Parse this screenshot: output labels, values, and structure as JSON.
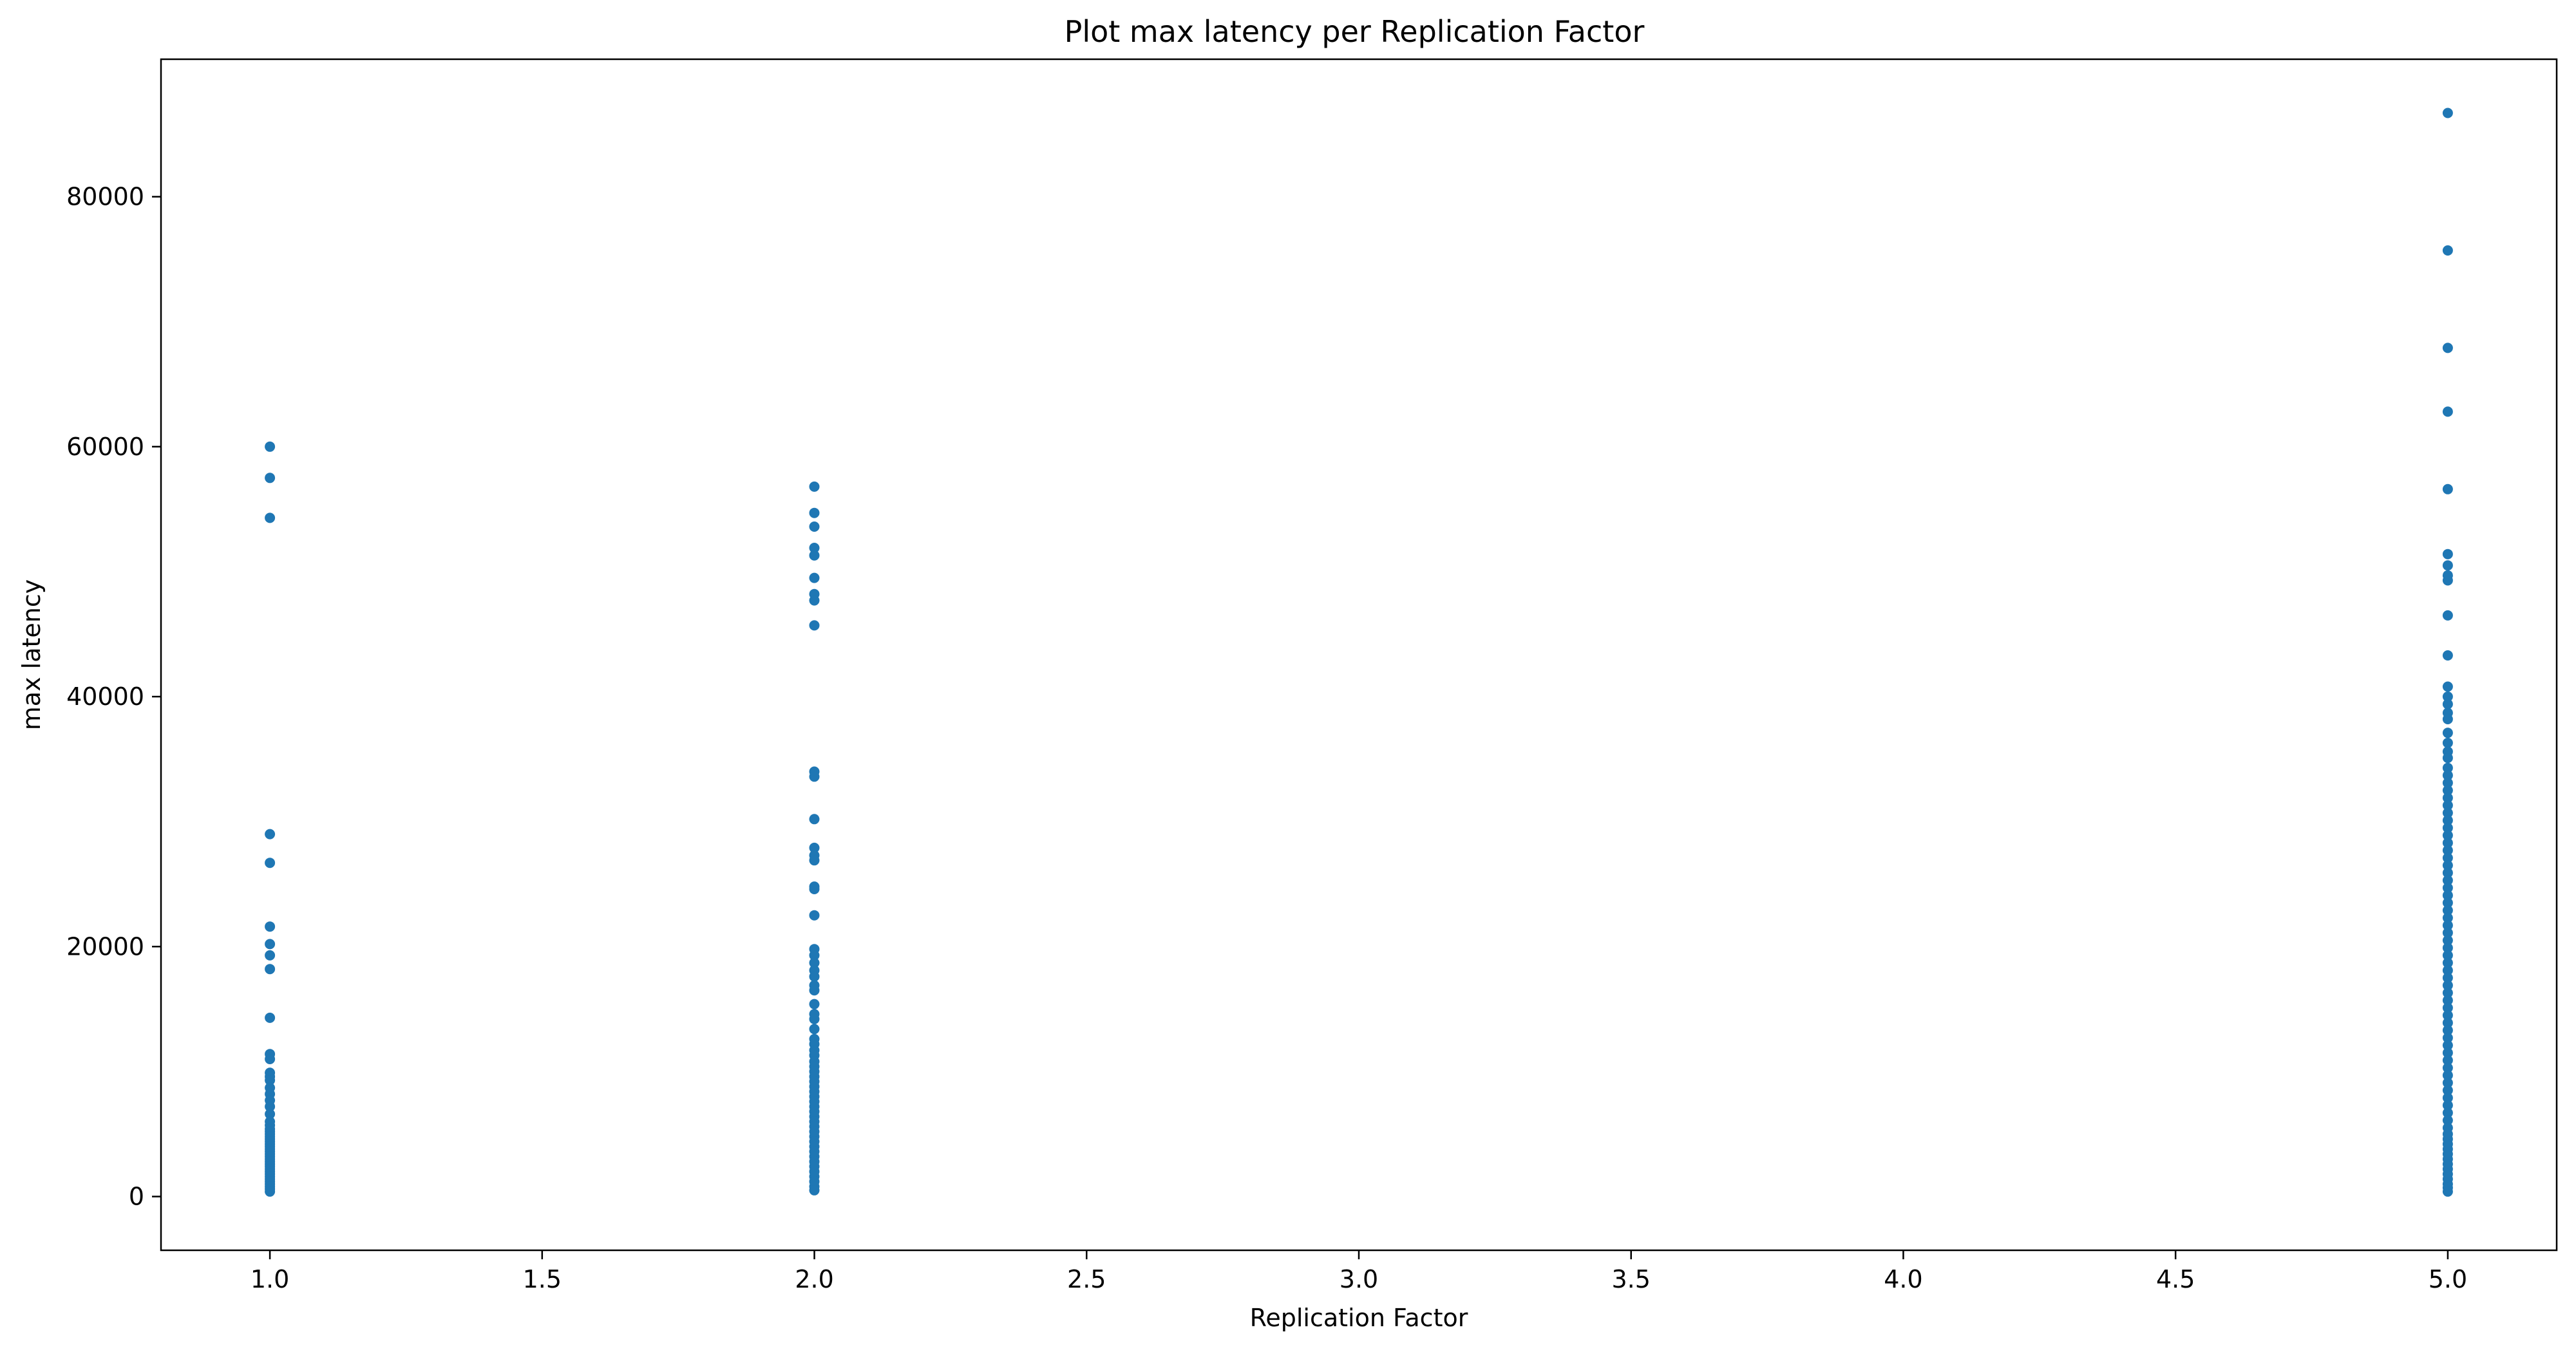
{
  "chart_data": {
    "type": "scatter",
    "title": "Plot max latency per Replication Factor",
    "xlabel": "Replication Factor",
    "ylabel": "max latency",
    "xlim": [
      0.8,
      5.2
    ],
    "ylim": [
      -4300,
      91000
    ],
    "xticks": [
      1.0,
      1.5,
      2.0,
      2.5,
      3.0,
      3.5,
      4.0,
      4.5,
      5.0
    ],
    "xtick_labels": [
      "1.0",
      "1.5",
      "2.0",
      "2.5",
      "3.0",
      "3.5",
      "4.0",
      "4.5",
      "5.0"
    ],
    "yticks": [
      0,
      20000,
      40000,
      60000,
      80000
    ],
    "ytick_labels": [
      "0",
      "20000",
      "40000",
      "60000",
      "80000"
    ],
    "grid": false,
    "marker_color": "#1f77b4",
    "series": [
      {
        "x": 1.0,
        "y": [
          60000,
          57500,
          54300,
          29000,
          26700,
          21600,
          20200,
          19300,
          18200,
          14300,
          11400,
          11000,
          9900,
          9600,
          9300,
          8700,
          8200,
          7700,
          7200,
          6600,
          6000,
          5700,
          5400,
          5200,
          5000,
          4800,
          4600,
          4400,
          4200,
          4000,
          3800,
          3600,
          3400,
          3200,
          3000,
          2800,
          2600,
          2400,
          2200,
          2000,
          1800,
          1600,
          1400,
          1200,
          1000,
          800,
          600,
          400
        ]
      },
      {
        "x": 2.0,
        "y": [
          56800,
          54700,
          53600,
          51900,
          51300,
          49500,
          48200,
          47700,
          45700,
          34000,
          33600,
          30200,
          27900,
          27300,
          26900,
          24800,
          24600,
          22500,
          19800,
          19300,
          18700,
          18100,
          17600,
          16900,
          16500,
          15400,
          14600,
          14200,
          13400,
          12600,
          12200,
          11700,
          11300,
          10800,
          10400,
          10000,
          9600,
          9200,
          8800,
          8400,
          8000,
          7600,
          7200,
          6800,
          6400,
          6000,
          5600,
          5200,
          4800,
          4400,
          4000,
          3600,
          3200,
          2800,
          2400,
          2000,
          1600,
          1200,
          800,
          500
        ]
      },
      {
        "x": 5.0,
        "y": [
          86700,
          75700,
          67900,
          62800,
          56600,
          51400,
          50500,
          49700,
          49300,
          46500,
          43300,
          40800,
          40000,
          39400,
          38700,
          38200,
          37100,
          36300,
          35600,
          35100,
          34300,
          33700,
          33100,
          32500,
          31900,
          31300,
          30700,
          30100,
          29500,
          28900,
          28300,
          27700,
          27100,
          26500,
          25900,
          25300,
          24700,
          24100,
          23500,
          22900,
          22300,
          21700,
          21100,
          20500,
          19900,
          19300,
          18700,
          18100,
          17500,
          16900,
          16300,
          15700,
          15100,
          14500,
          13900,
          13300,
          12700,
          12100,
          11500,
          10900,
          10300,
          9700,
          9100,
          8500,
          7900,
          7300,
          6700,
          6100,
          5500,
          5000,
          4600,
          4200,
          3800,
          3400,
          3000,
          2600,
          2200,
          1800,
          1400,
          1000,
          700,
          400
        ]
      }
    ]
  }
}
